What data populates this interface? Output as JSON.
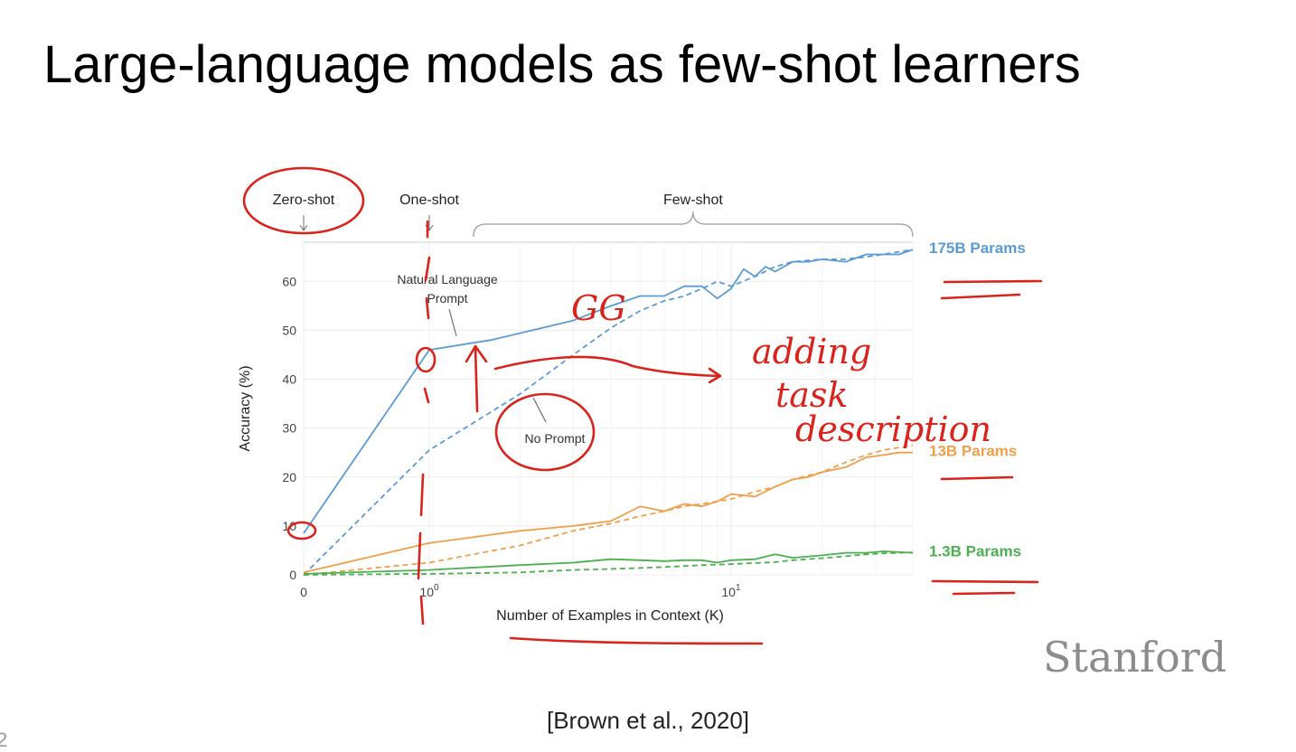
{
  "slide": {
    "title": "Large-language models as few-shot learners",
    "citation": "[Brown et al., 2020]",
    "logo_text": "Stanford",
    "page_number": "2"
  },
  "chart_data": {
    "type": "line",
    "title": "",
    "xlabel": "Number of Examples in Context  (K)",
    "ylabel": "Accuracy (%)",
    "x_scale": "symlog",
    "xlim": [
      0,
      40
    ],
    "ylim": [
      0,
      68
    ],
    "x_ticks": [
      {
        "value": 0,
        "label": "0"
      },
      {
        "value": 1,
        "base": "10",
        "exp": "0"
      },
      {
        "value": 10,
        "base": "10",
        "exp": "1"
      }
    ],
    "y_ticks": [
      0,
      10,
      20,
      30,
      40,
      50,
      60
    ],
    "grid": true,
    "legend": "right",
    "regime_labels": [
      {
        "text": "Zero-shot",
        "x": 0
      },
      {
        "text": "One-shot",
        "x": 1
      },
      {
        "text": "Few-shot",
        "x_range": [
          1.4,
          40
        ]
      }
    ],
    "annotations": [
      {
        "text_lines": [
          "Natural Language",
          "Prompt"
        ],
        "target_x": 1.6,
        "target_y": 48
      },
      {
        "text_lines": [
          "No Prompt"
        ],
        "target_x": 2.0,
        "target_y": 37
      }
    ],
    "series": [
      {
        "name": "175B Params",
        "label": "175B Params",
        "color": "#5b9bd5",
        "style": "solid",
        "x": [
          0,
          1,
          1.6,
          3,
          4,
          5,
          6,
          7,
          8,
          9,
          10,
          11,
          12,
          13,
          14,
          16,
          18,
          20,
          24,
          28,
          32,
          36,
          40
        ],
        "y": [
          8.5,
          46,
          48,
          52,
          55,
          57,
          57,
          59,
          59,
          56.5,
          58.5,
          62.5,
          61,
          63,
          62,
          64,
          64,
          64.5,
          64,
          65.5,
          65.5,
          65.5,
          66.5
        ]
      },
      {
        "name": "175B Params (no prompt)",
        "color": "#5b9bd5",
        "style": "dashed",
        "x": [
          0,
          1,
          2,
          3,
          4,
          5,
          6,
          7,
          8,
          9,
          10,
          12,
          14,
          16,
          20,
          24,
          28,
          32,
          40
        ],
        "y": [
          0,
          25.5,
          37,
          45,
          50.5,
          54,
          56,
          57,
          58.5,
          60,
          59,
          61,
          63,
          64,
          64.5,
          64.5,
          65,
          65.5,
          66.5
        ]
      },
      {
        "name": "13B Params",
        "label": "13B Params",
        "color": "#f0a04b",
        "style": "solid",
        "x": [
          0,
          1,
          2,
          3,
          4,
          5,
          6,
          7,
          8,
          9,
          10,
          12,
          14,
          16,
          18,
          20,
          24,
          28,
          32,
          36,
          40
        ],
        "y": [
          0.5,
          6.5,
          9,
          10,
          11,
          14,
          13,
          14.5,
          14,
          15,
          16.5,
          16,
          18,
          19.5,
          20,
          21,
          22,
          24,
          24.5,
          25,
          25
        ]
      },
      {
        "name": "13B Params (no prompt)",
        "color": "#f0a04b",
        "style": "dashed",
        "x": [
          0,
          1,
          2,
          3,
          4,
          5,
          6,
          7,
          8,
          9,
          10,
          12,
          14,
          16,
          20,
          24,
          28,
          32,
          40
        ],
        "y": [
          0,
          2.5,
          6,
          9,
          10.5,
          12,
          13,
          14,
          14.5,
          15,
          15.5,
          17,
          18,
          19.5,
          21,
          23,
          24.5,
          25.5,
          26.5
        ]
      },
      {
        "name": "1.3B Params",
        "label": "1.3B Params",
        "color": "#4caf50",
        "style": "solid",
        "x": [
          0,
          1,
          2,
          3,
          4,
          5,
          6,
          7,
          8,
          9,
          10,
          12,
          14,
          16,
          20,
          24,
          28,
          32,
          40
        ],
        "y": [
          0.2,
          1,
          2,
          2.5,
          3.2,
          3,
          2.8,
          3,
          3,
          2.5,
          3,
          3.2,
          4.2,
          3.5,
          4,
          4.5,
          4.5,
          4.8,
          4.5
        ]
      },
      {
        "name": "1.3B Params (no prompt)",
        "color": "#4caf50",
        "style": "dashed",
        "x": [
          0,
          1,
          2,
          3,
          4,
          5,
          6,
          7,
          8,
          10,
          12,
          14,
          16,
          20,
          24,
          28,
          32,
          40
        ],
        "y": [
          0,
          0.2,
          0.5,
          1,
          1.2,
          1.4,
          1.6,
          1.8,
          2,
          2.2,
          2.4,
          2.6,
          3,
          3.4,
          3.8,
          4.2,
          4.4,
          4.6
        ]
      }
    ]
  },
  "handwriting": {
    "note_line1": "adding",
    "note_line2": "task",
    "note_line3": "description",
    "scribble": "GG"
  }
}
